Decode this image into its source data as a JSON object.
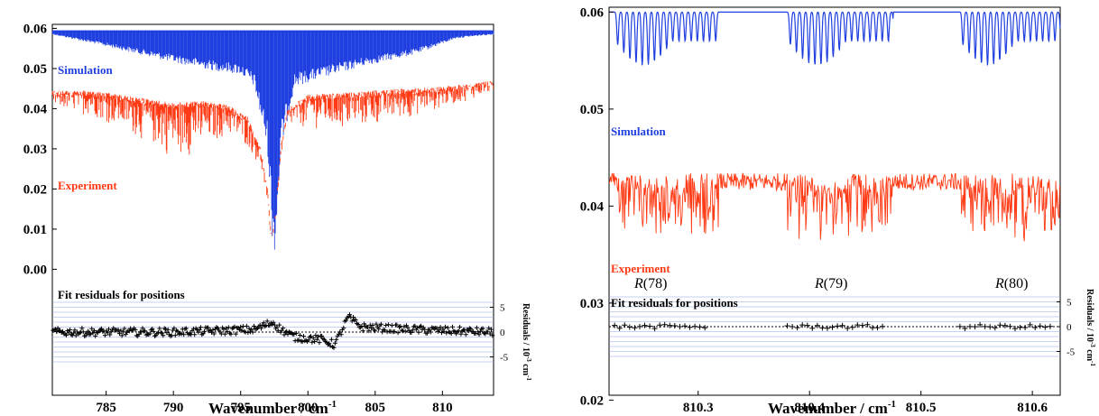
{
  "colors": {
    "simulation": "#1f3fe0",
    "experiment": "#ff3a14",
    "residuals": "#000000",
    "gridlines": "#8fa3e6"
  },
  "chart_data": [
    {
      "type": "line",
      "panel": "left",
      "xlabel": "Wavenumber / cm",
      "xlabel_sup": "-1",
      "xlim": [
        781,
        813.8
      ],
      "ylim": [
        -0.008,
        0.061
      ],
      "xticks": [
        785,
        790,
        795,
        800,
        805,
        810
      ],
      "xtick_labels": [
        "785",
        "790",
        "795",
        "800",
        "805",
        "810"
      ],
      "yticks": [
        0.0,
        0.01,
        0.02,
        0.03,
        0.04,
        0.05,
        0.06
      ],
      "ytick_labels": [
        "0.00",
        "0.01",
        "0.02",
        "0.03",
        "0.04",
        "0.05",
        "0.06"
      ],
      "series": [
        {
          "name": "Simulation",
          "baseline": 0.0595,
          "x": [
            781,
            785,
            790,
            793,
            795,
            796,
            797,
            797.4,
            797.6,
            798,
            799,
            801,
            804,
            808,
            811,
            813.8
          ],
          "absorption_depth": [
            0.001,
            0.004,
            0.008,
            0.01,
            0.011,
            0.014,
            0.03,
            0.055,
            0.055,
            0.03,
            0.014,
            0.012,
            0.009,
            0.006,
            0.002,
            0.001
          ]
        },
        {
          "name": "Experiment",
          "x": [
            781,
            784,
            787,
            790,
            792,
            794,
            795.5,
            796.5,
            797,
            797.3,
            797.6,
            798,
            798.5,
            800,
            803,
            807,
            810,
            813.8
          ],
          "upper": [
            0.0445,
            0.0445,
            0.043,
            0.0415,
            0.042,
            0.041,
            0.038,
            0.03,
            0.02,
            0.008,
            0.014,
            0.031,
            0.04,
            0.0435,
            0.044,
            0.045,
            0.0455,
            0.047
          ],
          "lower": [
            0.04,
            0.038,
            0.033,
            0.027,
            0.029,
            0.033,
            0.03,
            0.025,
            0.015,
            0.006,
            0.012,
            0.028,
            0.035,
            0.035,
            0.034,
            0.037,
            0.04,
            0.044
          ]
        }
      ],
      "annotations": [
        "Simulation",
        "Experiment",
        "Fit residuals for positions"
      ],
      "residuals": {
        "ylabel": "Residuals / 10",
        "ylabel_exp": "-3",
        "ylabel_unit": " cm",
        "ylabel_unit_exp": "-1",
        "ticks": [
          5,
          0,
          -5
        ],
        "tick_labels": [
          "5",
          "0",
          "-5"
        ],
        "trend": {
          "x": [
            781,
            790,
            796,
            797.4,
            798,
            799,
            801,
            802,
            803,
            804,
            808,
            813.8
          ],
          "y": [
            0,
            0,
            0.5,
            2,
            0.5,
            -1,
            -1.5,
            -2.5,
            3,
            1,
            0.5,
            0
          ]
        }
      },
      "grid": "residual gridlines only",
      "legend": "inline labels"
    },
    {
      "type": "line",
      "panel": "right",
      "xlabel": "Wavenumber / cm",
      "xlabel_sup": "-1",
      "xlim": [
        810.22,
        810.625
      ],
      "ylim": [
        0.0205,
        0.0605
      ],
      "xticks": [
        810.3,
        810.4,
        810.5,
        810.6
      ],
      "xtick_labels": [
        "810.3",
        "810.4",
        "810.5",
        "810.6"
      ],
      "yticks": [
        0.02,
        0.03,
        0.04,
        0.05,
        0.06
      ],
      "ytick_labels": [
        "0.02",
        "0.03",
        "0.04",
        "0.05",
        "0.06"
      ],
      "series": [
        {
          "name": "Simulation",
          "baseline": 0.06,
          "dip_min": 0.0545,
          "line_groups": [
            [
              810.225,
              810.318
            ],
            [
              810.38,
              810.475
            ],
            [
              810.535,
              810.625
            ]
          ]
        },
        {
          "name": "Experiment",
          "mean": 0.0425,
          "noise_min": 0.037,
          "noise_max": 0.046,
          "absorption_regions": [
            [
              810.225,
              810.318
            ],
            [
              810.38,
              810.475
            ],
            [
              810.535,
              810.625
            ]
          ]
        }
      ],
      "annotations": [
        "Simulation",
        "Experiment",
        "Fit residuals for positions"
      ],
      "branch_labels": [
        {
          "letter": "R",
          "number": "(78)",
          "x": 810.265
        },
        {
          "letter": "R",
          "number": "(79)",
          "x": 810.425
        },
        {
          "letter": "R",
          "number": "(80)",
          "x": 810.58
        }
      ],
      "residuals": {
        "ylabel": "Residuals / 10",
        "ylabel_exp": "-3",
        "ylabel_unit": " cm",
        "ylabel_unit_exp": "-1",
        "ticks": [
          5,
          0,
          -5
        ],
        "tick_labels": [
          "5",
          "0",
          "-5"
        ],
        "groups": [
          [
            810.225,
            810.31
          ],
          [
            810.38,
            810.47
          ],
          [
            810.535,
            810.62
          ]
        ]
      },
      "grid": "residual gridlines only",
      "legend": "inline labels"
    }
  ]
}
